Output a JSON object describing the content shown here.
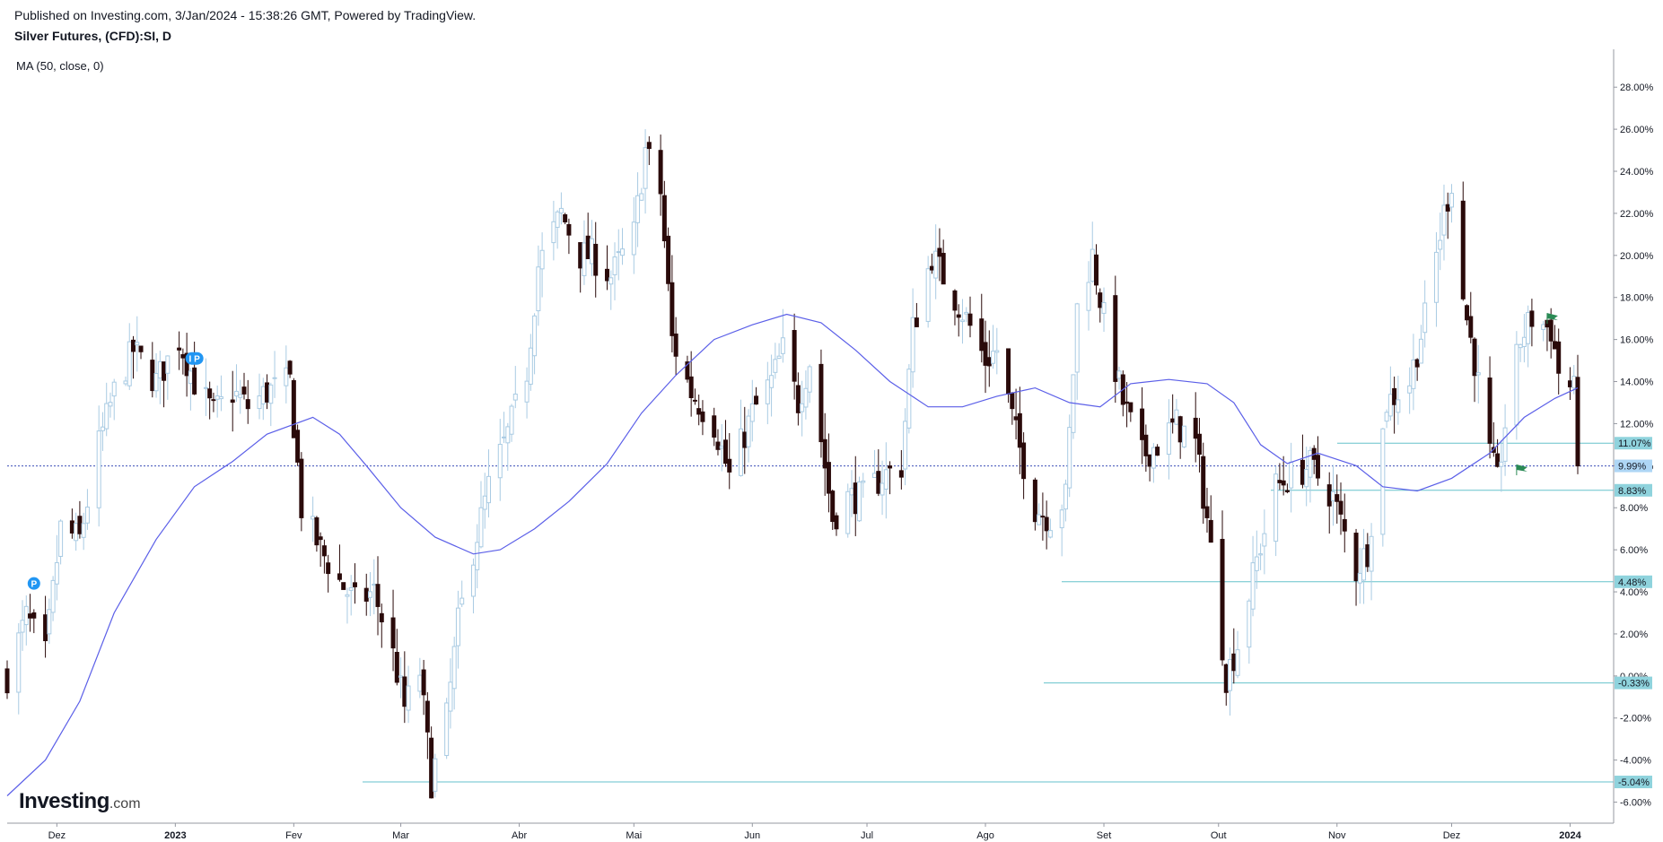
{
  "header": {
    "published": "Published on Investing.com, 3/Jan/2024 - 15:38:26 GMT, Powered by TradingView.",
    "instrument": "Silver Futures, (CFD):SI, D",
    "indicator": "MA (50, close, 0)"
  },
  "logo": {
    "main": "Investing",
    "suffix": ".com"
  },
  "colors": {
    "up_candle": "#a9cbe3",
    "down_candle": "#2a0a0a",
    "ma_line": "#5b5fe8",
    "level_line": "#66c2cc",
    "level_label_bg": "#8fd3dd",
    "current_line": "#3c4fb8",
    "current_label_bg": "#aed6f5",
    "flag": "#2a8a55",
    "event_badge": "#2196f3"
  },
  "chart_data": {
    "type": "candlestick",
    "title": "Silver Futures, (CFD):SI, D",
    "x_tick_labels": [
      "Dez",
      "2023",
      "Fev",
      "Mar",
      "Abr",
      "Mai",
      "Jun",
      "Jul",
      "Ago",
      "Set",
      "Out",
      "Nov",
      "Dez",
      "2024"
    ],
    "y_ticks": [
      -6,
      -4,
      -2,
      0,
      2,
      4,
      6,
      8,
      10,
      12,
      14,
      16,
      18,
      20,
      22,
      24,
      26,
      28
    ],
    "y_tick_labels": [
      "-6.00%",
      "-4.00%",
      "-2.00%",
      "0.00%",
      "2.00%",
      "4.00%",
      "6.00%",
      "8.00%",
      "10.00%",
      "12.00%",
      "14.00%",
      "16.00%",
      "18.00%",
      "20.00%",
      "22.00%",
      "24.00%",
      "26.00%",
      "28.00%"
    ],
    "ylim": [
      -7.0,
      29.8
    ],
    "y_unit": "% change",
    "close_path": [
      {
        "date": "2022-11-18",
        "close": 0.0
      },
      {
        "date": "2022-11-23",
        "close": 2.8
      },
      {
        "date": "2022-11-28",
        "close": 1.0
      },
      {
        "date": "2022-12-02",
        "close": 7.0
      },
      {
        "date": "2022-12-07",
        "close": 6.5
      },
      {
        "date": "2022-12-12",
        "close": 11.0
      },
      {
        "date": "2022-12-16",
        "close": 13.5
      },
      {
        "date": "2022-12-21",
        "close": 15.5
      },
      {
        "date": "2022-12-27",
        "close": 14.0
      },
      {
        "date": "2023-01-02",
        "close": 16.0
      },
      {
        "date": "2023-01-06",
        "close": 14.0
      },
      {
        "date": "2023-01-11",
        "close": 12.5
      },
      {
        "date": "2023-01-16",
        "close": 13.5
      },
      {
        "date": "2023-01-20",
        "close": 12.8
      },
      {
        "date": "2023-01-25",
        "close": 13.5
      },
      {
        "date": "2023-01-31",
        "close": 14.0
      },
      {
        "date": "2023-02-03",
        "close": 8.0
      },
      {
        "date": "2023-02-08",
        "close": 6.0
      },
      {
        "date": "2023-02-13",
        "close": 4.5
      },
      {
        "date": "2023-02-17",
        "close": 3.5
      },
      {
        "date": "2023-02-22",
        "close": 4.0
      },
      {
        "date": "2023-02-27",
        "close": 1.0
      },
      {
        "date": "2023-03-02",
        "close": -1.5
      },
      {
        "date": "2023-03-06",
        "close": 0.2
      },
      {
        "date": "2023-03-09",
        "close": -5.0
      },
      {
        "date": "2023-03-13",
        "close": -2.0
      },
      {
        "date": "2023-03-16",
        "close": 2.5
      },
      {
        "date": "2023-03-20",
        "close": 6.0
      },
      {
        "date": "2023-03-24",
        "close": 9.0
      },
      {
        "date": "2023-03-29",
        "close": 11.5
      },
      {
        "date": "2023-04-03",
        "close": 14.5
      },
      {
        "date": "2023-04-06",
        "close": 19.5
      },
      {
        "date": "2023-04-12",
        "close": 22.0
      },
      {
        "date": "2023-04-17",
        "close": 20.0
      },
      {
        "date": "2023-04-20",
        "close": 20.0
      },
      {
        "date": "2023-04-25",
        "close": 19.0
      },
      {
        "date": "2023-05-01",
        "close": 21.0
      },
      {
        "date": "2023-05-04",
        "close": 25.0
      },
      {
        "date": "2023-05-08",
        "close": 23.0
      },
      {
        "date": "2023-05-11",
        "close": 16.0
      },
      {
        "date": "2023-05-16",
        "close": 13.5
      },
      {
        "date": "2023-05-22",
        "close": 12.0
      },
      {
        "date": "2023-05-26",
        "close": 9.5
      },
      {
        "date": "2023-06-01",
        "close": 12.5
      },
      {
        "date": "2023-06-06",
        "close": 14.0
      },
      {
        "date": "2023-06-09",
        "close": 15.5
      },
      {
        "date": "2023-06-13",
        "close": 13.0
      },
      {
        "date": "2023-06-16",
        "close": 15.0
      },
      {
        "date": "2023-06-22",
        "close": 7.5
      },
      {
        "date": "2023-06-26",
        "close": 8.5
      },
      {
        "date": "2023-06-30",
        "close": 8.5
      },
      {
        "date": "2023-07-05",
        "close": 9.5
      },
      {
        "date": "2023-07-10",
        "close": 10.0
      },
      {
        "date": "2023-07-13",
        "close": 16.5
      },
      {
        "date": "2023-07-18",
        "close": 20.0
      },
      {
        "date": "2023-07-24",
        "close": 18.0
      },
      {
        "date": "2023-07-27",
        "close": 17.0
      },
      {
        "date": "2023-08-01",
        "close": 15.0
      },
      {
        "date": "2023-08-04",
        "close": 15.5
      },
      {
        "date": "2023-08-09",
        "close": 11.5
      },
      {
        "date": "2023-08-14",
        "close": 8.0
      },
      {
        "date": "2023-08-18",
        "close": 7.5
      },
      {
        "date": "2023-08-22",
        "close": 8.5
      },
      {
        "date": "2023-08-25",
        "close": 17.5
      },
      {
        "date": "2023-08-29",
        "close": 20.0
      },
      {
        "date": "2023-09-01",
        "close": 17.0
      },
      {
        "date": "2023-09-06",
        "close": 13.0
      },
      {
        "date": "2023-09-11",
        "close": 10.5
      },
      {
        "date": "2023-09-15",
        "close": 11.0
      },
      {
        "date": "2023-09-20",
        "close": 12.0
      },
      {
        "date": "2023-09-25",
        "close": 11.0
      },
      {
        "date": "2023-09-28",
        "close": 7.5
      },
      {
        "date": "2023-10-03",
        "close": 0.0
      },
      {
        "date": "2023-10-06",
        "close": 1.5
      },
      {
        "date": "2023-10-11",
        "close": 5.5
      },
      {
        "date": "2023-10-16",
        "close": 9.0
      },
      {
        "date": "2023-10-20",
        "close": 9.5
      },
      {
        "date": "2023-10-25",
        "close": 10.0
      },
      {
        "date": "2023-10-31",
        "close": 8.5
      },
      {
        "date": "2023-11-06",
        "close": 5.0
      },
      {
        "date": "2023-11-09",
        "close": 6.0
      },
      {
        "date": "2023-11-14",
        "close": 13.0
      },
      {
        "date": "2023-11-20",
        "close": 14.0
      },
      {
        "date": "2023-11-24",
        "close": 17.0
      },
      {
        "date": "2023-11-29",
        "close": 22.0
      },
      {
        "date": "2023-12-01",
        "close": 23.5
      },
      {
        "date": "2023-12-04",
        "close": 18.0
      },
      {
        "date": "2023-12-07",
        "close": 15.0
      },
      {
        "date": "2023-12-11",
        "close": 10.5
      },
      {
        "date": "2023-12-13",
        "close": 9.2
      },
      {
        "date": "2023-12-15",
        "close": 12.0
      },
      {
        "date": "2023-12-19",
        "close": 16.0
      },
      {
        "date": "2023-12-22",
        "close": 17.0
      },
      {
        "date": "2023-12-27",
        "close": 16.5
      },
      {
        "date": "2023-12-29",
        "close": 14.5
      },
      {
        "date": "2024-01-02",
        "close": 13.5
      },
      {
        "date": "2024-01-03",
        "close": 9.99
      }
    ],
    "moving_average": {
      "name": "MA (50, close, 0)",
      "points": [
        {
          "date": "2022-11-18",
          "value": -5.7
        },
        {
          "date": "2022-11-28",
          "value": -4.0
        },
        {
          "date": "2022-12-07",
          "value": -1.2
        },
        {
          "date": "2022-12-16",
          "value": 3.0
        },
        {
          "date": "2022-12-27",
          "value": 6.5
        },
        {
          "date": "2023-01-06",
          "value": 9.0
        },
        {
          "date": "2023-01-16",
          "value": 10.2
        },
        {
          "date": "2023-01-25",
          "value": 11.5
        },
        {
          "date": "2023-02-06",
          "value": 12.3
        },
        {
          "date": "2023-02-13",
          "value": 11.5
        },
        {
          "date": "2023-02-20",
          "value": 10.0
        },
        {
          "date": "2023-03-01",
          "value": 8.0
        },
        {
          "date": "2023-03-10",
          "value": 6.6
        },
        {
          "date": "2023-03-20",
          "value": 5.8
        },
        {
          "date": "2023-03-27",
          "value": 6.0
        },
        {
          "date": "2023-04-05",
          "value": 7.0
        },
        {
          "date": "2023-04-14",
          "value": 8.3
        },
        {
          "date": "2023-04-24",
          "value": 10.1
        },
        {
          "date": "2023-05-03",
          "value": 12.5
        },
        {
          "date": "2023-05-12",
          "value": 14.3
        },
        {
          "date": "2023-05-22",
          "value": 16.0
        },
        {
          "date": "2023-06-01",
          "value": 16.7
        },
        {
          "date": "2023-06-10",
          "value": 17.2
        },
        {
          "date": "2023-06-19",
          "value": 16.8
        },
        {
          "date": "2023-06-28",
          "value": 15.5
        },
        {
          "date": "2023-07-07",
          "value": 14.0
        },
        {
          "date": "2023-07-17",
          "value": 12.8
        },
        {
          "date": "2023-07-26",
          "value": 12.8
        },
        {
          "date": "2023-08-04",
          "value": 13.3
        },
        {
          "date": "2023-08-14",
          "value": 13.7
        },
        {
          "date": "2023-08-23",
          "value": 13.0
        },
        {
          "date": "2023-08-31",
          "value": 12.8
        },
        {
          "date": "2023-09-08",
          "value": 13.9
        },
        {
          "date": "2023-09-18",
          "value": 14.1
        },
        {
          "date": "2023-09-28",
          "value": 13.9
        },
        {
          "date": "2023-10-05",
          "value": 13.0
        },
        {
          "date": "2023-10-12",
          "value": 11.0
        },
        {
          "date": "2023-10-19",
          "value": 10.1
        },
        {
          "date": "2023-10-27",
          "value": 10.6
        },
        {
          "date": "2023-11-06",
          "value": 10.0
        },
        {
          "date": "2023-11-13",
          "value": 9.0
        },
        {
          "date": "2023-11-22",
          "value": 8.8
        },
        {
          "date": "2023-12-01",
          "value": 9.4
        },
        {
          "date": "2023-12-11",
          "value": 10.6
        },
        {
          "date": "2023-12-20",
          "value": 12.3
        },
        {
          "date": "2023-12-28",
          "value": 13.2
        },
        {
          "date": "2024-01-03",
          "value": 13.7
        }
      ]
    },
    "levels": [
      {
        "label": "11.07%",
        "value": 11.07
      },
      {
        "label": "9.99%",
        "value": 9.99,
        "current": true
      },
      {
        "label": "8.83%",
        "value": 8.83
      },
      {
        "label": "4.48%",
        "value": 4.48
      },
      {
        "label": "-0.33%",
        "value": -0.33
      },
      {
        "label": "-5.04%",
        "value": -5.04
      }
    ],
    "event_markers": [
      {
        "symbol": "P",
        "date": "2022-11-25",
        "value": 4.4
      },
      {
        "symbol": "I P",
        "date": "2023-01-06",
        "value": 15.1
      }
    ],
    "flags": [
      {
        "date": "2023-12-26",
        "value": 17.0
      },
      {
        "date": "2023-12-18",
        "value": 9.8
      }
    ],
    "grid": false,
    "legend": "top-left"
  }
}
